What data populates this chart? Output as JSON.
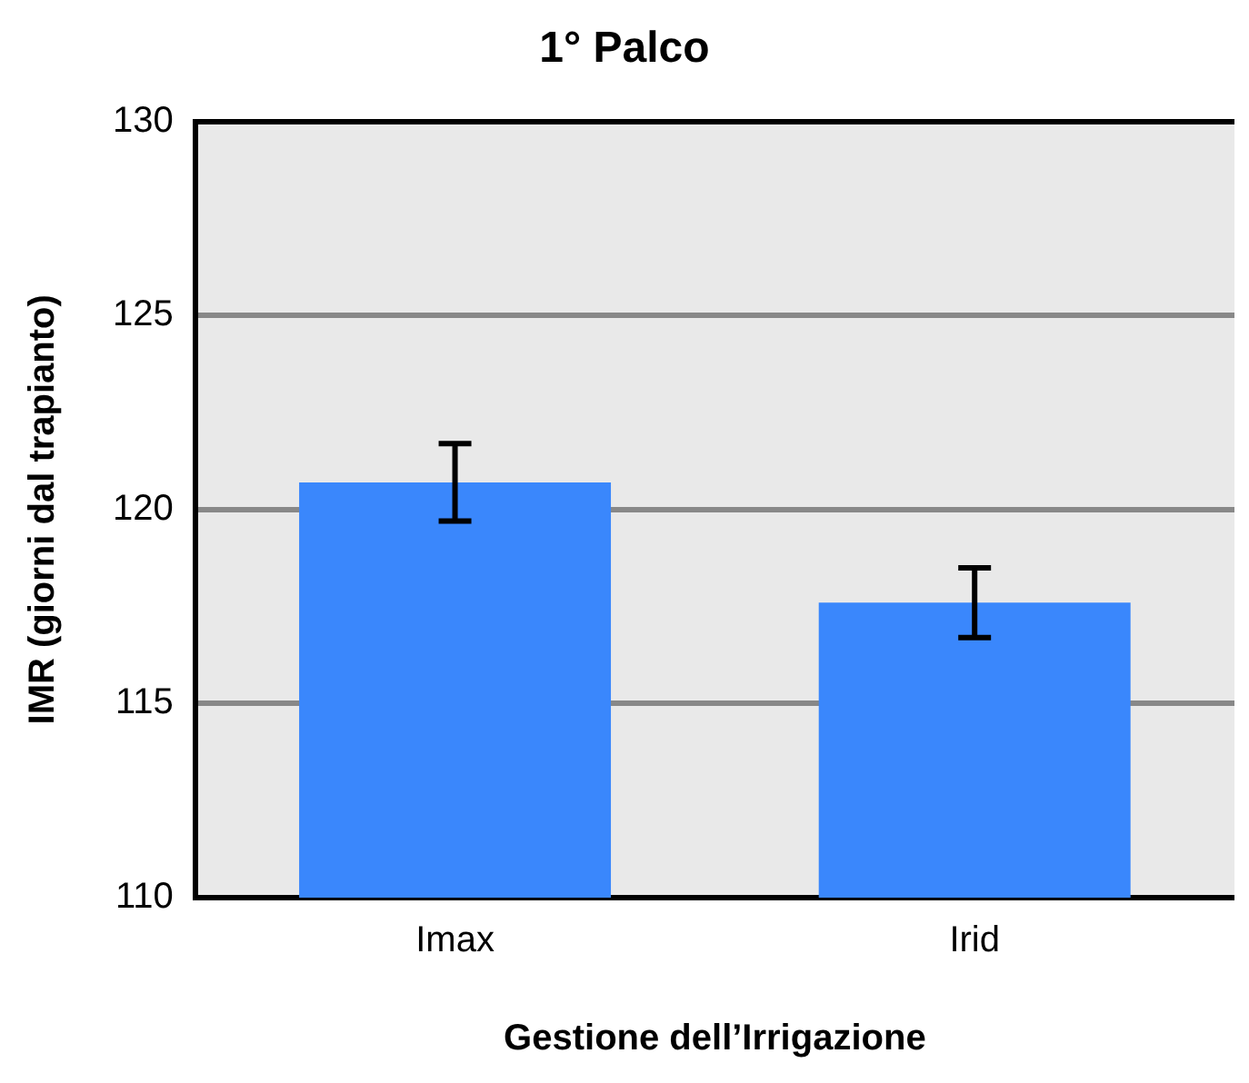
{
  "chart_data": {
    "type": "bar",
    "title": "1° Palco",
    "xlabel": "Gestione dell’Irrigazione",
    "ylabel": "IMR (giorni dal trapianto)",
    "categories": [
      "Imax",
      "Irid"
    ],
    "values": [
      120.7,
      117.6
    ],
    "errors": [
      1.0,
      0.9
    ],
    "color": "#3a87fc",
    "ylim": [
      110,
      130
    ],
    "yticks": [
      110,
      115,
      120,
      125,
      130
    ],
    "grid": "y",
    "legend": false
  }
}
